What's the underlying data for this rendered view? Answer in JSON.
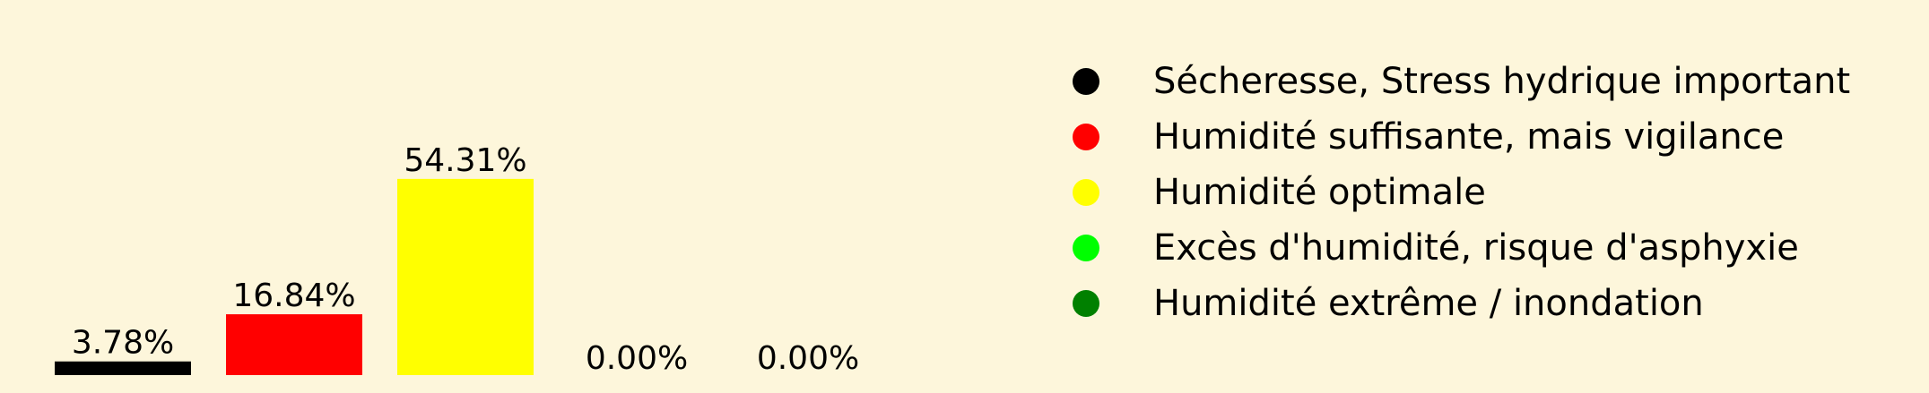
{
  "background_color": "#fdf6db",
  "chart_data": {
    "type": "bar",
    "title": "",
    "xlabel": "",
    "ylabel": "",
    "ylim": [
      0,
      60
    ],
    "grid": false,
    "legend_position": "right",
    "categories": [
      "Sécheresse, Stress hydrique important",
      "Humidité suffisante, mais vigilance",
      "Humidité optimale",
      "Excès d'humidité, risque d'asphyxie",
      "Humidité extrême / inondation"
    ],
    "values": [
      3.78,
      16.84,
      54.31,
      0.0,
      0.0
    ],
    "value_labels": [
      "3.78%",
      "16.84%",
      "54.31%",
      "0.00%",
      "0.00%"
    ],
    "colors": [
      "#000000",
      "#ff0000",
      "#ffff00",
      "#00ff00",
      "#008000"
    ],
    "legend": [
      {
        "label": "Sécheresse, Stress hydrique important",
        "color": "#000000"
      },
      {
        "label": "Humidité suffisante, mais vigilance",
        "color": "#ff0000"
      },
      {
        "label": "Humidité optimale",
        "color": "#ffff00"
      },
      {
        "label": "Excès d'humidité, risque d'asphyxie",
        "color": "#00ff00"
      },
      {
        "label": "Humidité extrême / inondation",
        "color": "#008000"
      }
    ]
  }
}
